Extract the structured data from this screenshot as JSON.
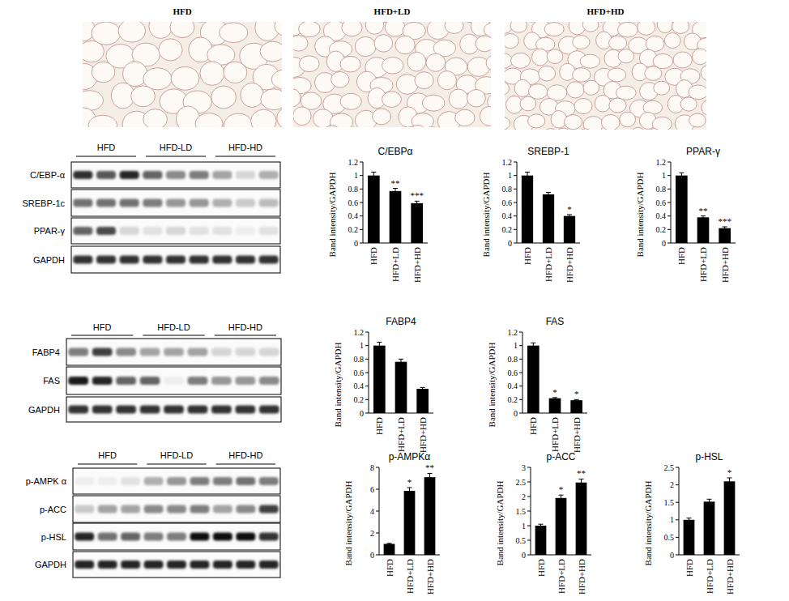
{
  "chart_data": [
    {
      "type": "bar",
      "title": "C/EBPα",
      "y_label": "Band intensity/GAPDH",
      "categories": [
        "HFD",
        "HFD+LD",
        "HFD+HD"
      ],
      "values": [
        1.0,
        0.77,
        0.59
      ],
      "errors": [
        0.05,
        0.04,
        0.03
      ],
      "significance": [
        null,
        "**",
        "***"
      ],
      "color": "#000000",
      "ylim": [
        0,
        1.2
      ],
      "yticks": [
        0,
        0.2,
        0.4,
        0.6,
        0.8,
        1,
        1.2
      ]
    },
    {
      "type": "bar",
      "title": "SREBP-1",
      "y_label": "Band intensity/GAPDH",
      "categories": [
        "HFD",
        "HFD+LD",
        "HFD+HD"
      ],
      "values": [
        1.0,
        0.72,
        0.4
      ],
      "errors": [
        0.05,
        0.03,
        0.02
      ],
      "significance": [
        null,
        null,
        "*"
      ],
      "color": "#000000",
      "ylim": [
        0,
        1.2
      ],
      "yticks": [
        0,
        0.2,
        0.4,
        0.6,
        0.8,
        1,
        1.2
      ]
    },
    {
      "type": "bar",
      "title": "PPAR-γ",
      "y_label": "Band intensity/GAPDH",
      "categories": [
        "HFD",
        "HFD+LD",
        "HFD+HD"
      ],
      "values": [
        1.0,
        0.38,
        0.22
      ],
      "errors": [
        0.04,
        0.02,
        0.02
      ],
      "significance": [
        null,
        "**",
        "***"
      ],
      "color": "#000000",
      "ylim": [
        0,
        1.2
      ],
      "yticks": [
        0,
        0.2,
        0.4,
        0.6,
        0.8,
        1,
        1.2
      ]
    },
    {
      "type": "bar",
      "title": "FABP4",
      "y_label": "Band intensity/GAPDH",
      "categories": [
        "HFD",
        "HFD+LD",
        "HFD+HD"
      ],
      "values": [
        1.0,
        0.76,
        0.36
      ],
      "errors": [
        0.05,
        0.04,
        0.02
      ],
      "significance": [
        null,
        null,
        null
      ],
      "color": "#000000",
      "ylim": [
        0,
        1.2
      ],
      "yticks": [
        0,
        0.2,
        0.4,
        0.6,
        0.8,
        1,
        1.2
      ]
    },
    {
      "type": "bar",
      "title": "FAS",
      "y_label": "Band intensity/GAPDH",
      "categories": [
        "HFD",
        "HFD+LD",
        "HFD+HD"
      ],
      "values": [
        1.0,
        0.22,
        0.19
      ],
      "errors": [
        0.04,
        0.01,
        0.01
      ],
      "significance": [
        null,
        "*",
        "*"
      ],
      "color": "#000000",
      "ylim": [
        0,
        1.2
      ],
      "yticks": [
        0,
        0.2,
        0.4,
        0.6,
        0.8,
        1,
        1.2
      ]
    },
    {
      "type": "bar",
      "title": "p-AMPKα",
      "y_label": "Band intensity/GAPDH",
      "categories": [
        "HFD",
        "HFD+LD",
        "HFD+HD"
      ],
      "values": [
        1.0,
        5.85,
        7.1
      ],
      "errors": [
        0.05,
        0.3,
        0.35
      ],
      "significance": [
        null,
        "*",
        "**"
      ],
      "color": "#000000",
      "ylim": [
        0,
        8
      ],
      "yticks": [
        0,
        2,
        4,
        6,
        8
      ]
    },
    {
      "type": "bar",
      "title": "p-ACC",
      "y_label": "Band intensity/GAPDH",
      "categories": [
        "HFD",
        "HFD+LD",
        "HFD+HD"
      ],
      "values": [
        1.0,
        1.95,
        2.48
      ],
      "errors": [
        0.05,
        0.1,
        0.12
      ],
      "significance": [
        null,
        "*",
        "**"
      ],
      "color": "#000000",
      "ylim": [
        0,
        3
      ],
      "yticks": [
        0,
        0.5,
        1,
        1.5,
        2,
        2.5,
        3
      ]
    },
    {
      "type": "bar",
      "title": "p-HSL",
      "y_label": "Band intensity/GAPDH",
      "categories": [
        "HFD",
        "HFD+LD",
        "HFD+HD"
      ],
      "values": [
        1.0,
        1.52,
        2.1
      ],
      "errors": [
        0.05,
        0.07,
        0.1
      ],
      "significance": [
        null,
        null,
        "*"
      ],
      "color": "#000000",
      "ylim": [
        0,
        2.5
      ],
      "yticks": [
        0,
        0.5,
        1,
        1.5,
        2,
        2.5
      ]
    }
  ],
  "histology": {
    "panels": [
      {
        "title": "HFD"
      },
      {
        "title": "HFD+LD"
      },
      {
        "title": "HFD+HD"
      }
    ]
  },
  "blots": [
    {
      "groups": [
        "HFD",
        "HFD-LD",
        "HFD-HD"
      ],
      "rows": [
        {
          "label": "C/EBP-α",
          "band_intensity": [
            0.8,
            0.65,
            0.85,
            0.6,
            0.45,
            0.5,
            0.35,
            0.15,
            0.3
          ]
        },
        {
          "label": "SREBP-1c",
          "band_intensity": [
            0.55,
            0.55,
            0.55,
            0.5,
            0.4,
            0.4,
            0.3,
            0.2,
            0.25
          ]
        },
        {
          "label": "PPAR-γ",
          "band_intensity": [
            0.6,
            0.7,
            0.15,
            0.1,
            0.15,
            0.1,
            0.1,
            0.05,
            0.1
          ]
        },
        {
          "label": "GAPDH",
          "band_intensity": [
            0.8,
            0.8,
            0.8,
            0.8,
            0.8,
            0.8,
            0.8,
            0.8,
            0.8
          ]
        }
      ]
    },
    {
      "groups": [
        "HFD",
        "HFD-LD",
        "HFD-HD"
      ],
      "rows": [
        {
          "label": "FABP4",
          "band_intensity": [
            0.5,
            0.75,
            0.45,
            0.35,
            0.35,
            0.35,
            0.15,
            0.15,
            0.15
          ]
        },
        {
          "label": "FAS",
          "band_intensity": [
            0.9,
            0.85,
            0.6,
            0.6,
            0.05,
            0.5,
            0.4,
            0.4,
            0.45
          ]
        },
        {
          "label": "GAPDH",
          "band_intensity": [
            0.8,
            0.8,
            0.8,
            0.8,
            0.8,
            0.8,
            0.8,
            0.8,
            0.8
          ]
        }
      ]
    },
    {
      "groups": [
        "HFD",
        "HFD-LD",
        "HFD-HD"
      ],
      "rows": [
        {
          "label": "p-AMPK α",
          "band_intensity": [
            0.05,
            0.05,
            0.1,
            0.3,
            0.4,
            0.5,
            0.5,
            0.55,
            0.5
          ]
        },
        {
          "label": "p-ACC",
          "band_intensity": [
            0.2,
            0.35,
            0.35,
            0.45,
            0.45,
            0.5,
            0.35,
            0.45,
            0.75
          ]
        },
        {
          "label": "p-HSL",
          "band_intensity": [
            0.85,
            0.55,
            0.6,
            0.5,
            0.5,
            0.95,
            0.95,
            0.95,
            0.8
          ]
        },
        {
          "label": "GAPDH",
          "band_intensity": [
            0.85,
            0.85,
            0.85,
            0.85,
            0.85,
            0.85,
            0.85,
            0.85,
            0.85
          ]
        }
      ]
    }
  ]
}
